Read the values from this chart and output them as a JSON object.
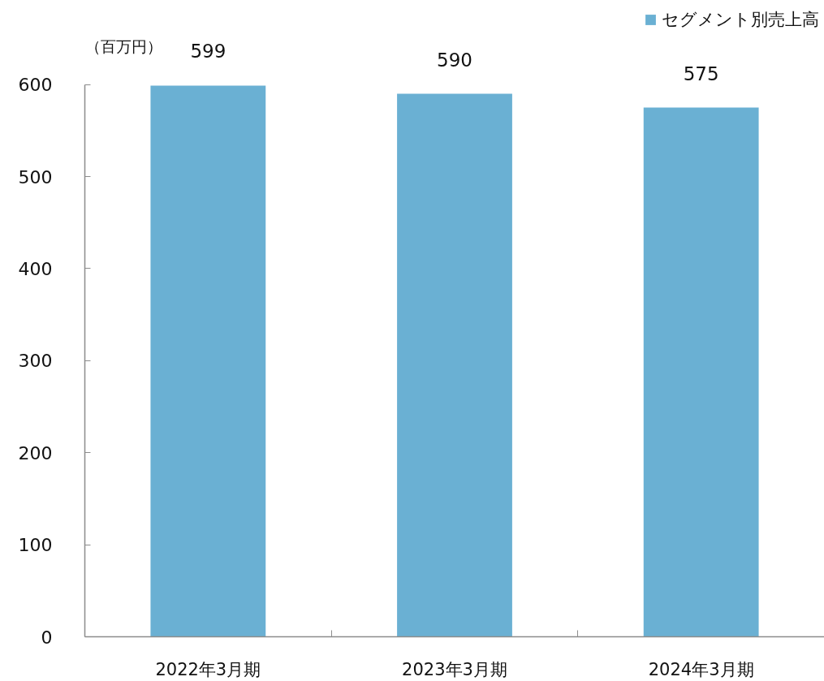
{
  "chart_data": {
    "type": "bar",
    "ylabel": "（百万円）",
    "categories": [
      "2022年3月期",
      "2023年3月期",
      "2024年3月期"
    ],
    "series": [
      {
        "name": "セグメント別売上高",
        "color": "#6ab0d3",
        "values": [
          599,
          590,
          575
        ]
      }
    ],
    "ylim": [
      0,
      600
    ],
    "yticks": [
      0,
      100,
      200,
      300,
      400,
      500,
      600
    ],
    "data_labels": true,
    "legend": "top right"
  }
}
